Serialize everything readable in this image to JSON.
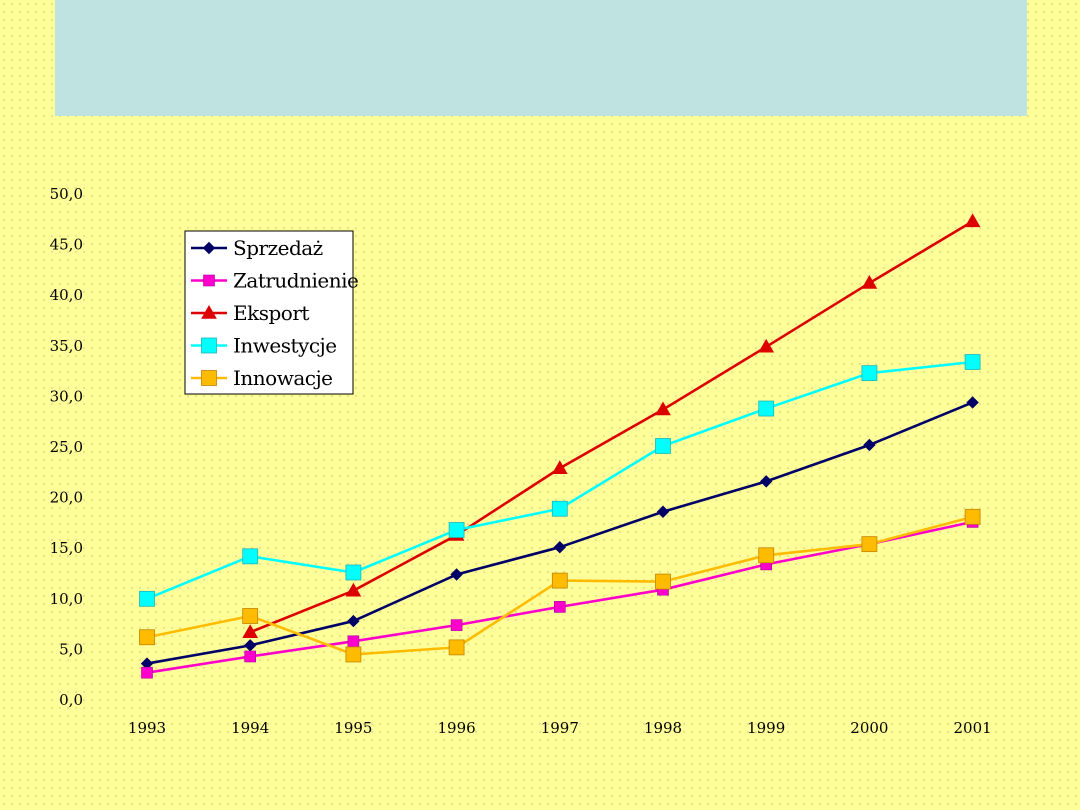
{
  "chart_data": {
    "type": "line",
    "title": "",
    "xlabel": "",
    "ylabel": "",
    "ylim": [
      0,
      50
    ],
    "y_ticks": [
      "0,0",
      "5,0",
      "10,0",
      "15,0",
      "20,0",
      "25,0",
      "30,0",
      "35,0",
      "40,0",
      "45,0",
      "50,0"
    ],
    "categories": [
      "1993",
      "1994",
      "1995",
      "1996",
      "1997",
      "1998",
      "1999",
      "2000",
      "2001"
    ],
    "grid": false,
    "legend_position": "top-left",
    "series": [
      {
        "name": "Sprzedaż",
        "color": "#000066",
        "marker": "diamond",
        "values": [
          3.6,
          5.4,
          7.8,
          12.4,
          15.1,
          18.6,
          21.6,
          25.2,
          29.4
        ]
      },
      {
        "name": "Zatrudnienie",
        "color": "#ff00cc",
        "marker": "square",
        "values": [
          2.7,
          4.3,
          5.8,
          7.4,
          9.2,
          10.9,
          13.4,
          15.4,
          17.6
        ]
      },
      {
        "name": "Eksport",
        "color": "#dd0000",
        "marker": "triangle",
        "values": [
          null,
          6.7,
          10.8,
          16.3,
          22.9,
          28.7,
          34.9,
          41.2,
          47.3
        ]
      },
      {
        "name": "Inwestycje",
        "color": "#00ffff",
        "marker": "square-large",
        "values": [
          10.0,
          14.2,
          12.6,
          16.8,
          18.9,
          25.1,
          28.8,
          32.3,
          33.4
        ]
      },
      {
        "name": "Innowacje",
        "color": "#ffbb00",
        "marker": "square-large",
        "values": [
          6.2,
          8.3,
          4.5,
          5.2,
          11.8,
          11.7,
          14.3,
          15.4,
          18.1
        ]
      }
    ]
  }
}
